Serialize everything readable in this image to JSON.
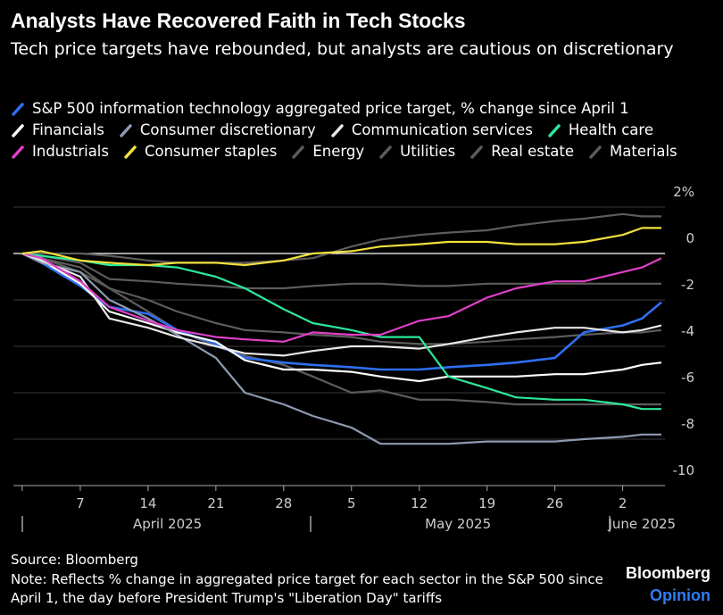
{
  "chart_data": {
    "type": "line",
    "title": "Analysts Have Recovered Faith in Tech Stocks",
    "subtitle": "Tech price targets have rebounded, but analysts are cautious on discretionary",
    "x": [
      "2025-04-01",
      "2025-04-03",
      "2025-04-07",
      "2025-04-10",
      "2025-04-14",
      "2025-04-17",
      "2025-04-21",
      "2025-04-24",
      "2025-04-28",
      "2025-05-01",
      "2025-05-05",
      "2025-05-08",
      "2025-05-12",
      "2025-05-15",
      "2025-05-19",
      "2025-05-22",
      "2025-05-26",
      "2025-05-29",
      "2025-06-02",
      "2025-06-04",
      "2025-06-06"
    ],
    "xlim": [
      "2025-03-31",
      "2025-06-06"
    ],
    "xticks": [
      {
        "value": "2025-04-07",
        "label": "7"
      },
      {
        "value": "2025-04-14",
        "label": "14"
      },
      {
        "value": "2025-04-21",
        "label": "21"
      },
      {
        "value": "2025-04-28",
        "label": "28"
      },
      {
        "value": "2025-05-05",
        "label": "5"
      },
      {
        "value": "2025-05-12",
        "label": "12"
      },
      {
        "value": "2025-05-19",
        "label": "19"
      },
      {
        "value": "2025-05-26",
        "label": "26"
      },
      {
        "value": "2025-06-02",
        "label": "2"
      }
    ],
    "xticks_months": [
      {
        "value": "2025-04-16",
        "label": "April 2025"
      },
      {
        "value": "2025-05-16",
        "label": "May 2025"
      },
      {
        "value": "2025-06-04",
        "label": "June 2025"
      }
    ],
    "ylim": [
      -10,
      2
    ],
    "yticks": [
      {
        "value": 2,
        "label": "2%"
      },
      0,
      -2,
      -4,
      -6,
      -8,
      -10
    ],
    "grid": true,
    "series": [
      {
        "name": "S&P 500 information technology aggregated price target, % change since April 1",
        "color": "#2f6ff0",
        "values": [
          0,
          -0.4,
          -1.4,
          -2.3,
          -2.6,
          -3.3,
          -3.9,
          -4.5,
          -4.7,
          -4.8,
          -4.9,
          -5.0,
          -5.0,
          -4.9,
          -4.8,
          -4.7,
          -4.5,
          -3.4,
          -3.1,
          -2.8,
          -2.1
        ]
      },
      {
        "name": "Financials",
        "color": "#ffffff",
        "values": [
          0,
          -0.3,
          -1.3,
          -2.5,
          -3.0,
          -3.4,
          -3.8,
          -4.6,
          -5.0,
          -5.0,
          -5.1,
          -5.3,
          -5.5,
          -5.3,
          -5.3,
          -5.3,
          -5.2,
          -5.2,
          -5.0,
          -4.8,
          -4.7
        ]
      },
      {
        "name": "Consumer discretionary",
        "color": "#8d9bb0",
        "values": [
          0,
          -0.4,
          -0.8,
          -2.0,
          -2.8,
          -3.5,
          -4.5,
          -6.0,
          -6.5,
          -7.0,
          -7.5,
          -8.2,
          -8.2,
          -8.2,
          -8.1,
          -8.1,
          -8.1,
          -8.0,
          -7.9,
          -7.8,
          -7.8
        ]
      },
      {
        "name": "Communication services",
        "color": "#e8e8e8",
        "values": [
          0,
          -0.3,
          -1.0,
          -2.8,
          -3.2,
          -3.6,
          -4.0,
          -4.3,
          -4.4,
          -4.2,
          -4.0,
          -4.0,
          -4.1,
          -3.9,
          -3.6,
          -3.4,
          -3.2,
          -3.2,
          -3.4,
          -3.3,
          -3.1
        ]
      },
      {
        "name": "Health care",
        "color": "#2ee89a",
        "values": [
          0,
          -0.1,
          -0.3,
          -0.5,
          -0.5,
          -0.6,
          -1.0,
          -1.5,
          -2.4,
          -3.0,
          -3.3,
          -3.6,
          -3.6,
          -5.3,
          -5.8,
          -6.2,
          -6.3,
          -6.3,
          -6.5,
          -6.7,
          -6.7
        ]
      },
      {
        "name": "Industrials",
        "color": "#e040c8",
        "values": [
          0,
          -0.2,
          -1.2,
          -2.3,
          -2.9,
          -3.3,
          -3.6,
          -3.7,
          -3.8,
          -3.4,
          -3.5,
          -3.5,
          -2.9,
          -2.7,
          -1.9,
          -1.5,
          -1.2,
          -1.2,
          -0.8,
          -0.6,
          -0.2
        ]
      },
      {
        "name": "Consumer staples",
        "color": "#f2e03c",
        "values": [
          0,
          0.1,
          -0.3,
          -0.4,
          -0.5,
          -0.4,
          -0.4,
          -0.5,
          -0.3,
          0.0,
          0.1,
          0.3,
          0.4,
          0.5,
          0.5,
          0.4,
          0.4,
          0.5,
          0.8,
          1.1,
          1.1
        ]
      },
      {
        "name": "Energy",
        "color": "#5c5c5c",
        "values": [
          0,
          0,
          0.0,
          -0.1,
          -0.3,
          -0.4,
          -0.4,
          -0.4,
          -0.3,
          -0.2,
          0.3,
          0.6,
          0.8,
          0.9,
          1.0,
          1.2,
          1.4,
          1.5,
          1.7,
          1.6,
          1.6
        ]
      },
      {
        "name": "Utilities",
        "color": "#5c5c5c",
        "values": [
          0,
          -0.1,
          -0.4,
          -1.1,
          -1.2,
          -1.3,
          -1.4,
          -1.5,
          -1.5,
          -1.4,
          -1.3,
          -1.3,
          -1.4,
          -1.4,
          -1.3,
          -1.3,
          -1.3,
          -1.3,
          -1.3,
          -1.3,
          -1.3
        ]
      },
      {
        "name": "Real estate",
        "color": "#5c5c5c",
        "values": [
          0,
          -0.2,
          -0.8,
          -1.5,
          -2.0,
          -2.5,
          -3.0,
          -3.3,
          -3.4,
          -3.5,
          -3.6,
          -3.8,
          -3.9,
          -3.9,
          -3.8,
          -3.7,
          -3.6,
          -3.5,
          -3.4,
          -3.4,
          -3.3
        ]
      },
      {
        "name": "Materials",
        "color": "#5c5c5c",
        "values": [
          0,
          -0.2,
          -0.6,
          -1.5,
          -2.5,
          -3.3,
          -4.0,
          -4.4,
          -4.8,
          -5.3,
          -6.0,
          -5.9,
          -6.3,
          -6.3,
          -6.4,
          -6.5,
          -6.5,
          -6.5,
          -6.5,
          -6.5,
          -6.5
        ]
      }
    ],
    "source": "Source: Bloomberg",
    "note": "Note: Reflects % change in aggregated price target for each sector in the S&P 500 since April 1, the day before President Trump's \"Liberation Day\" tariffs",
    "branding": [
      "Bloomberg",
      "Opinion"
    ]
  }
}
